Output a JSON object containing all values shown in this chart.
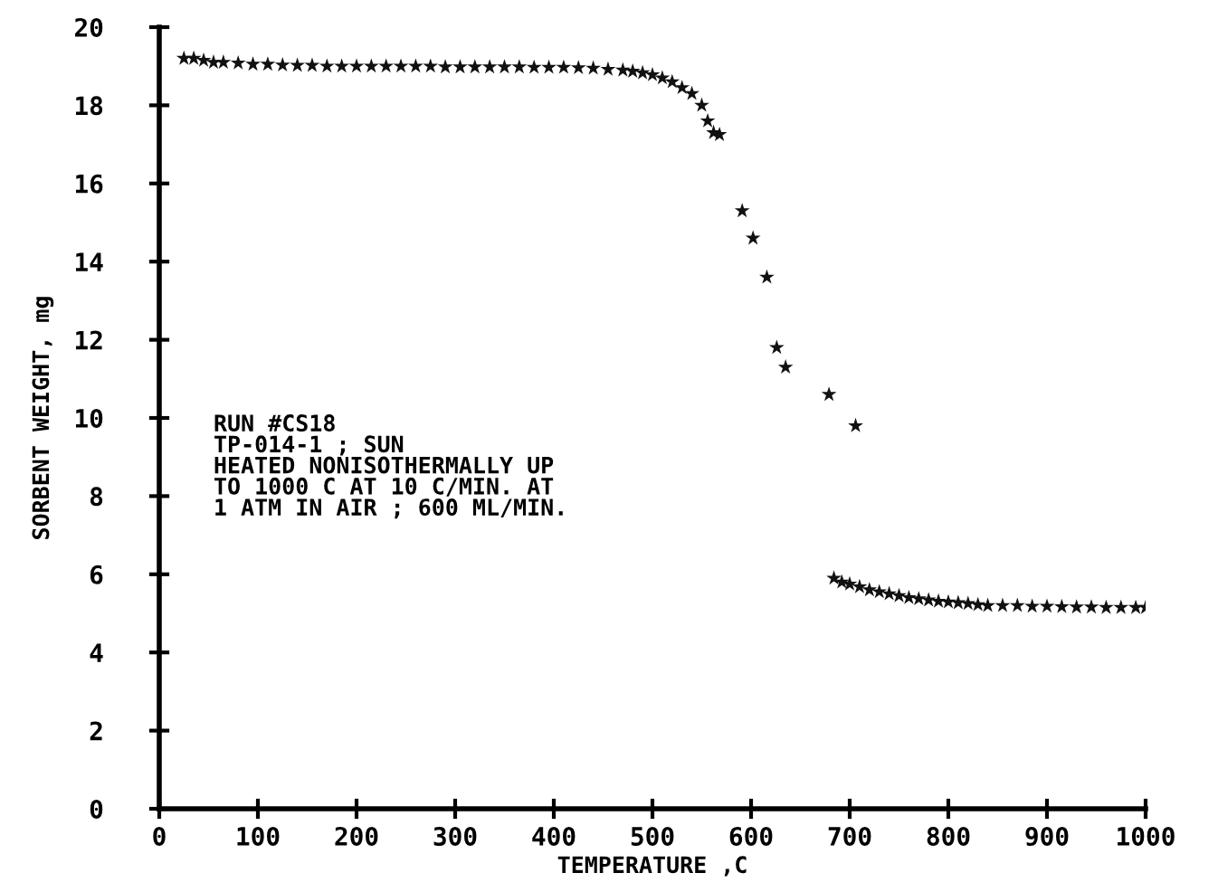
{
  "chart_data": {
    "type": "scatter",
    "xlabel": "TEMPERATURE ,C",
    "ylabel": "SORBENT WEIGHT, mg",
    "xlim": [
      0,
      1000
    ],
    "ylim": [
      0,
      20
    ],
    "xticks": [
      0,
      100,
      200,
      300,
      400,
      500,
      600,
      700,
      800,
      900,
      1000
    ],
    "yticks": [
      0,
      2,
      4,
      6,
      8,
      10,
      12,
      14,
      16,
      18,
      20
    ],
    "grid": false,
    "marker": "star",
    "annotations": [
      "RUN #CS18\nTP-014-1 ; SUN\nHEATED NONISOTHERMALLY UP\nTO 1000 C AT 10 C/MIN. AT\n1 ATM IN AIR ; 600 ML/MIN."
    ],
    "series": [
      {
        "color": "#111111",
        "x": [
          25,
          35,
          45,
          55,
          65,
          80,
          95,
          110,
          125,
          140,
          155,
          170,
          185,
          200,
          215,
          230,
          245,
          260,
          275,
          290,
          305,
          320,
          335,
          350,
          365,
          380,
          395,
          410,
          425,
          440,
          455,
          470,
          480,
          490,
          500,
          510,
          520,
          530,
          540,
          550,
          556,
          562,
          568,
          591,
          602,
          616,
          626,
          635,
          679,
          706,
          684,
          692,
          700,
          710,
          720,
          730,
          740,
          750,
          760,
          770,
          780,
          790,
          800,
          810,
          820,
          830,
          840,
          855,
          870,
          885,
          900,
          915,
          930,
          945,
          960,
          975,
          990,
          1000
        ],
        "values": [
          19.2,
          19.2,
          19.15,
          19.1,
          19.1,
          19.08,
          19.05,
          19.05,
          19.03,
          19.02,
          19.02,
          19.0,
          19.0,
          19.0,
          19.0,
          19.0,
          19.0,
          19.0,
          19.0,
          18.98,
          18.98,
          18.98,
          18.98,
          18.98,
          18.98,
          18.97,
          18.97,
          18.97,
          18.96,
          18.95,
          18.92,
          18.9,
          18.87,
          18.83,
          18.78,
          18.7,
          18.6,
          18.45,
          18.3,
          18.0,
          17.6,
          17.3,
          17.25,
          15.3,
          14.6,
          13.6,
          11.8,
          11.3,
          10.6,
          9.8,
          5.9,
          5.8,
          5.75,
          5.68,
          5.6,
          5.55,
          5.5,
          5.45,
          5.4,
          5.37,
          5.34,
          5.31,
          5.29,
          5.27,
          5.25,
          5.22,
          5.2,
          5.2,
          5.2,
          5.18,
          5.18,
          5.17,
          5.16,
          5.16,
          5.15,
          5.15,
          5.15,
          5.15
        ]
      }
    ]
  }
}
